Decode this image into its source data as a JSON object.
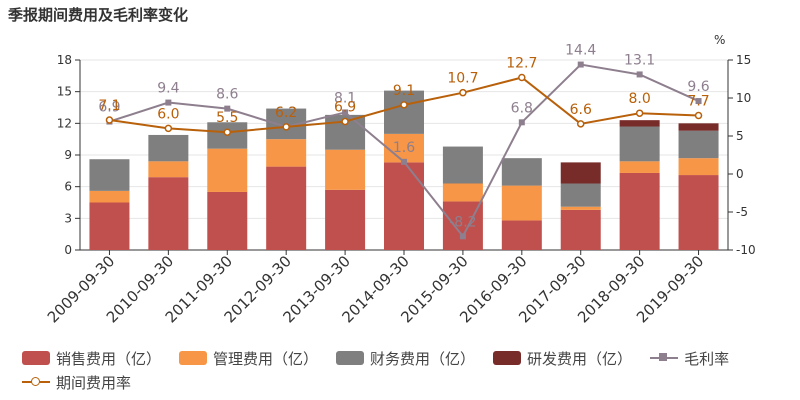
{
  "title": "季报期间费用及毛利率变化",
  "chart_data": {
    "type": "bar",
    "stacked": true,
    "categories": [
      "2009-09-30",
      "2010-09-30",
      "2011-09-30",
      "2012-09-30",
      "2013-09-30",
      "2014-09-30",
      "2015-09-30",
      "2016-09-30",
      "2017-09-30",
      "2018-09-30",
      "2019-09-30"
    ],
    "left_axis": {
      "min": 0,
      "max": 18,
      "ticks": [
        0,
        3,
        6,
        9,
        12,
        15,
        18
      ]
    },
    "right_axis": {
      "min": -10,
      "max": 15,
      "ticks": [
        -10,
        -5,
        0,
        5,
        10,
        15
      ],
      "unit": "%"
    },
    "series": [
      {
        "name": "销售费用（亿）",
        "type": "bar",
        "axis": "left",
        "color": "#c0504d",
        "values": [
          4.5,
          6.9,
          5.5,
          7.9,
          5.7,
          8.3,
          4.6,
          2.8,
          3.8,
          7.3,
          7.1
        ]
      },
      {
        "name": "管理费用（亿）",
        "type": "bar",
        "axis": "left",
        "color": "#f79646",
        "values": [
          1.1,
          1.5,
          4.1,
          2.6,
          3.8,
          2.7,
          1.7,
          3.3,
          0.3,
          1.1,
          1.6
        ]
      },
      {
        "name": "财务费用（亿）",
        "type": "bar",
        "axis": "left",
        "color": "#7f7f7f",
        "values": [
          3.0,
          2.5,
          2.5,
          2.9,
          3.3,
          4.1,
          3.5,
          2.6,
          2.2,
          3.3,
          2.6
        ]
      },
      {
        "name": "研发费用（亿）",
        "type": "bar",
        "axis": "left",
        "color": "#772c2a",
        "values": [
          0,
          0,
          0,
          0,
          0,
          0,
          0,
          0,
          2.0,
          0.6,
          0.7
        ]
      },
      {
        "name": "毛利率",
        "type": "line",
        "axis": "right",
        "color": "#8e7f8e",
        "marker": "square",
        "values": [
          6.9,
          9.4,
          8.6,
          6.2,
          8.1,
          1.6,
          -8.2,
          6.8,
          14.4,
          13.1,
          9.6
        ],
        "labels": [
          "6.9",
          "9.4",
          "8.6",
          "6.2",
          "8.1",
          "1.6",
          "-8.2",
          "6.8",
          "14.4",
          "13.1",
          "9.6"
        ]
      },
      {
        "name": "期间费用率",
        "type": "line",
        "axis": "right",
        "color": "#b8600a",
        "marker": "circle",
        "values": [
          7.1,
          6.0,
          5.5,
          6.2,
          6.9,
          9.1,
          10.7,
          12.7,
          6.6,
          8.0,
          7.7
        ],
        "labels": [
          "7.1",
          "6.0",
          "5.5",
          "6.2",
          "6.9",
          "9.1",
          "10.7",
          "12.7",
          "6.6",
          "8.0",
          "7.7"
        ]
      }
    ],
    "legend_position": "bottom",
    "grid": true
  }
}
